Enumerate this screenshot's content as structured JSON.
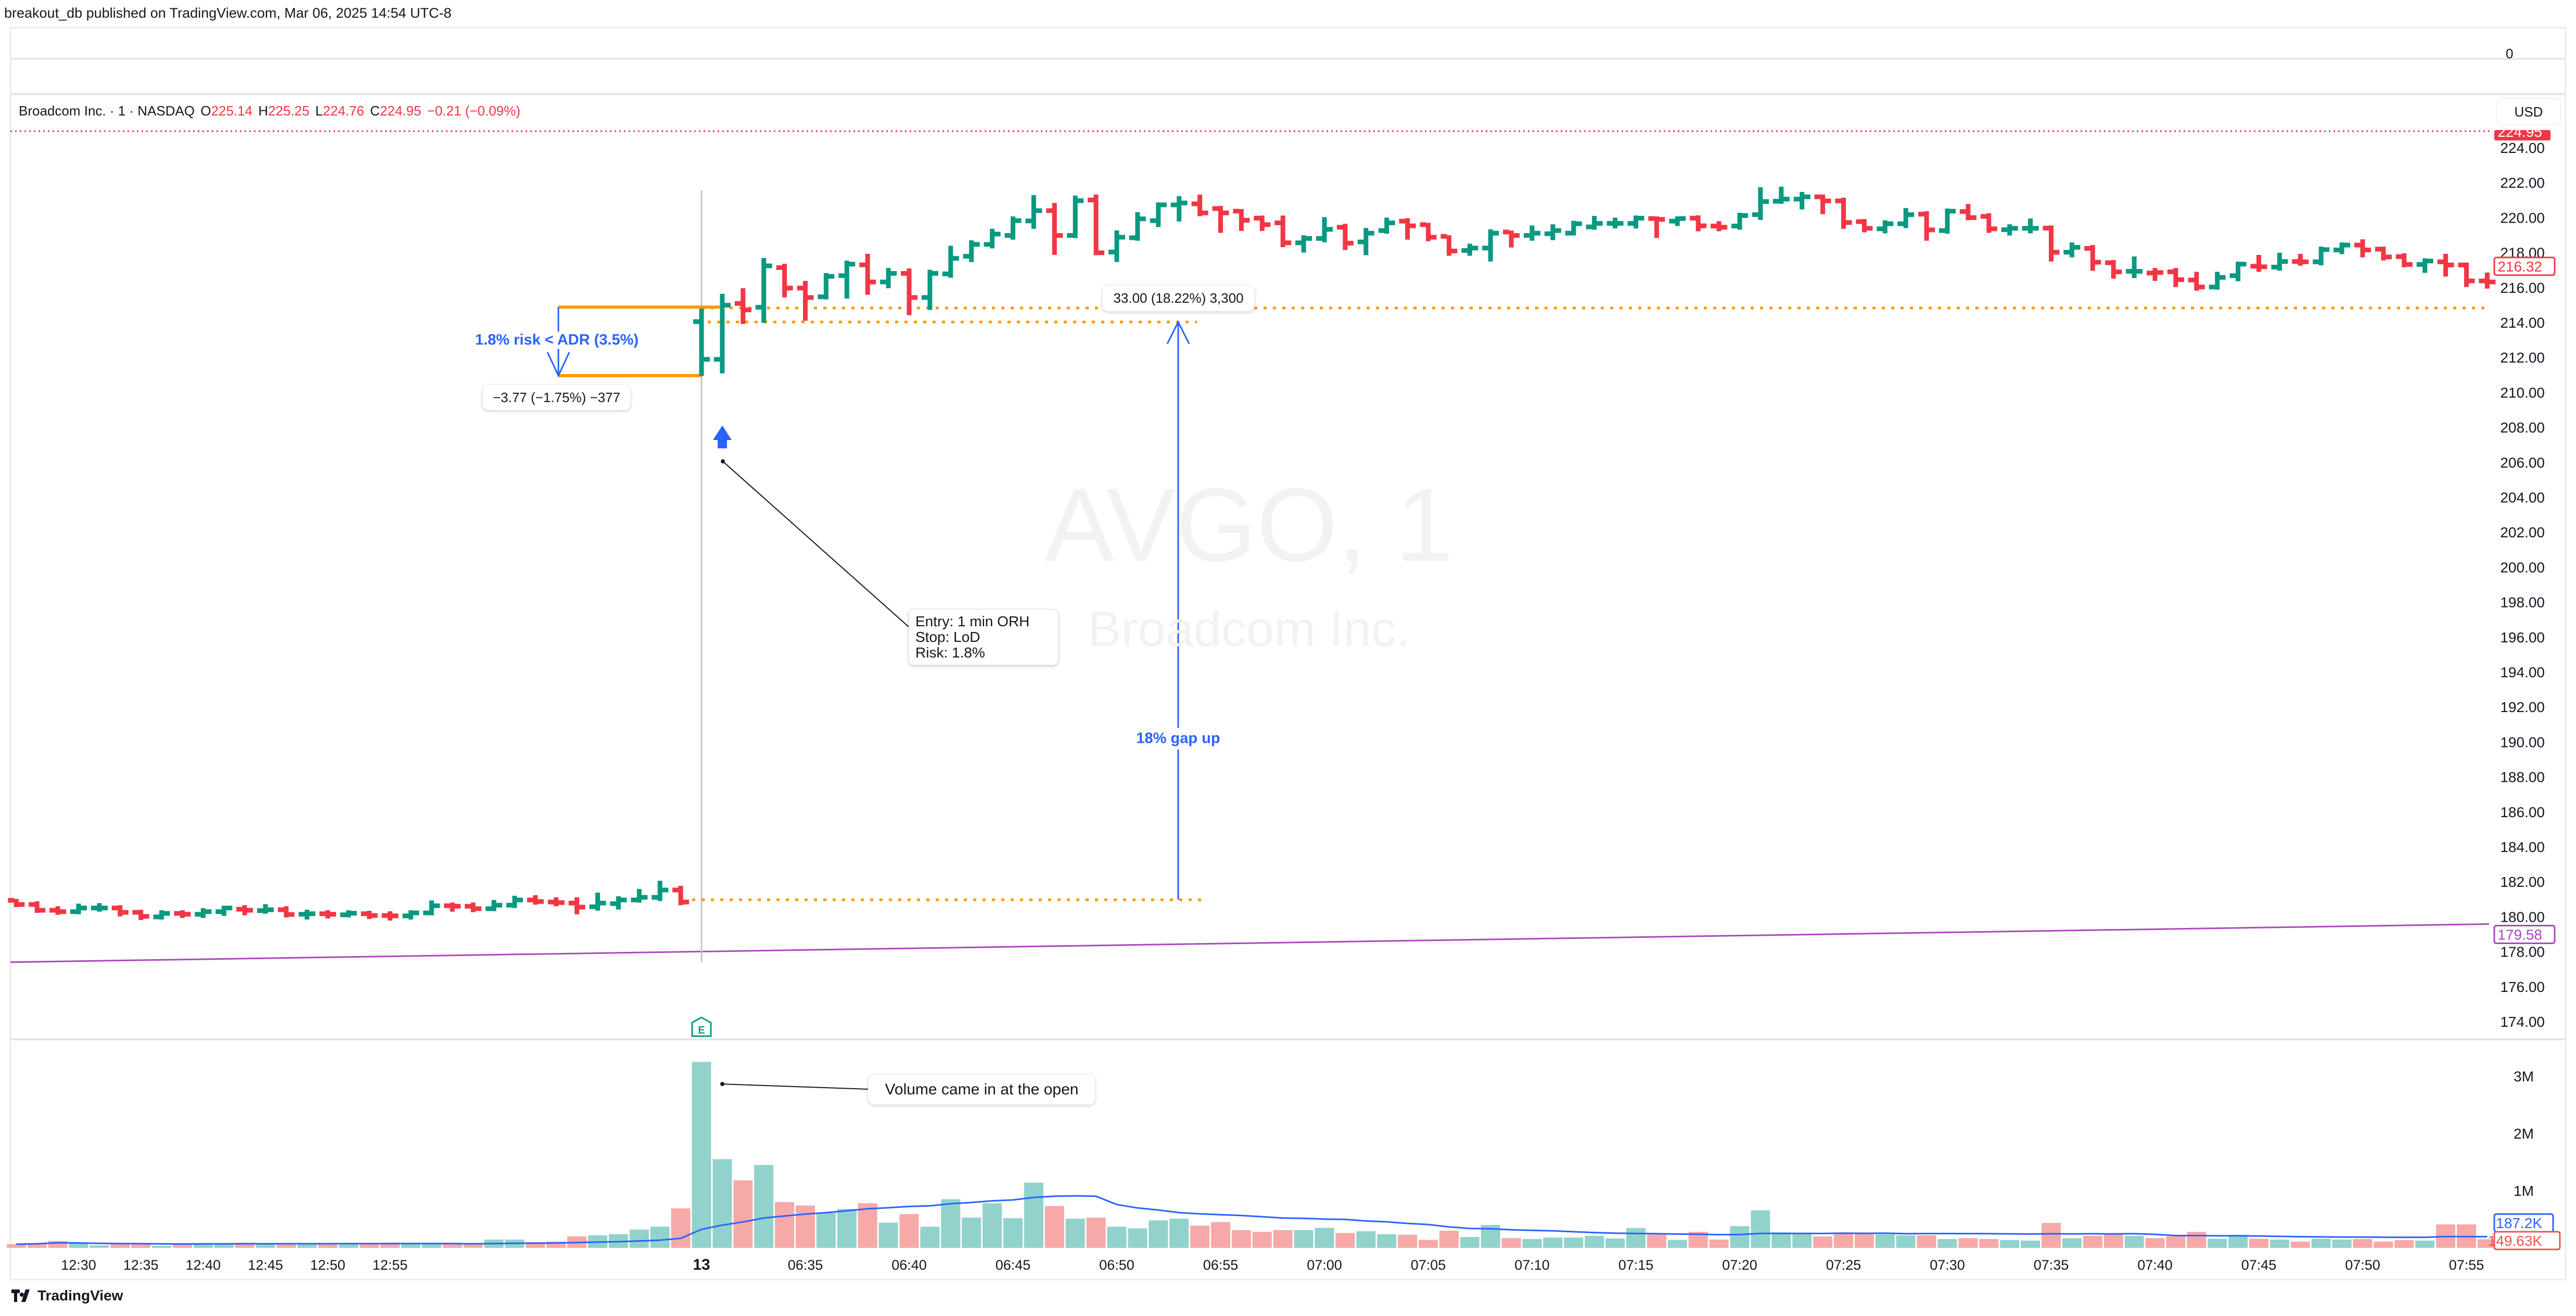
{
  "header": {
    "publish_line": "breakout_db published on TradingView.com, Mar 06, 2025 14:54 UTC-8"
  },
  "legend": {
    "symbol": "Broadcom Inc. · 1 · NASDAQ",
    "o_label": "O",
    "o": "225.14",
    "h_label": "H",
    "h": "225.25",
    "l_label": "L",
    "l": "224.76",
    "c_label": "C",
    "c": "224.95",
    "change": "−0.21 (−0.09%)"
  },
  "watermark": {
    "ticker": "AVGO, 1",
    "name": "Broadcom Inc."
  },
  "axis": {
    "currency": "USD",
    "top_pane_label": "0",
    "price_ticks": [
      "224.00",
      "222.00",
      "220.00",
      "218.00",
      "216.00",
      "214.00",
      "212.00",
      "210.00",
      "208.00",
      "206.00",
      "204.00",
      "202.00",
      "200.00",
      "198.00",
      "196.00",
      "194.00",
      "192.00",
      "190.00",
      "188.00",
      "186.00",
      "184.00",
      "182.00",
      "180.00",
      "178.00",
      "176.00",
      "174.00"
    ],
    "volume_ticks": [
      {
        "label": "3M",
        "value": 3000000
      },
      {
        "label": "2M",
        "value": 2000000
      },
      {
        "label": "1M",
        "value": 1000000
      }
    ],
    "last_price_label": "224.95",
    "current_price_label": "216.32",
    "ma_label": "179.58",
    "vol_ma_label": "187.2K",
    "vol_label": "149.63K"
  },
  "colors": {
    "up": "#089981",
    "down": "#f23645",
    "vol_up": "#92d2cc",
    "vol_down": "#f7a9a7",
    "ma": "#ab47bc",
    "vol_ma": "#2962ff",
    "annot_blue": "#2962ff",
    "orange": "#ff9800"
  },
  "annotations": {
    "risk_text": "1.8% risk < ADR (3.5%)",
    "risk_measure": "−3.77 (−1.75%) −377",
    "entry_note": [
      "Entry: 1 min ORH",
      "Stop: LoD",
      "Risk: 1.8%"
    ],
    "gap_text": "18% gap up",
    "gap_measure": "33.00 (18.22%) 3,300",
    "volume_note": "Volume came in at the open",
    "earnings_marker": "E"
  },
  "footer": {
    "brand": "TradingView"
  },
  "chart_data": {
    "type": "ohlc",
    "ylim": [
      173,
      225
    ],
    "volume_ma_length": 20,
    "ma_line": {
      "start": 177.4,
      "end": 179.58
    },
    "levels": {
      "open_high": 214.83,
      "open_low_tick": 214.03,
      "prior_close": 180.97,
      "stop": 210.96,
      "entry": 214.88
    },
    "x_ticks": [
      {
        "label": "12:30",
        "bar": 3
      },
      {
        "label": "12:35",
        "bar": 6
      },
      {
        "label": "12:40",
        "bar": 9
      },
      {
        "label": "12:45",
        "bar": 12
      },
      {
        "label": "12:50",
        "bar": 15
      },
      {
        "label": "12:55",
        "bar": 18
      },
      {
        "label": "13",
        "bar": 33,
        "bold": true
      },
      {
        "label": "06:35",
        "bar": 38
      },
      {
        "label": "06:40",
        "bar": 43
      },
      {
        "label": "06:45",
        "bar": 48
      },
      {
        "label": "06:50",
        "bar": 53
      },
      {
        "label": "06:55",
        "bar": 58
      },
      {
        "label": "07:00",
        "bar": 63
      },
      {
        "label": "07:05",
        "bar": 68
      },
      {
        "label": "07:10",
        "bar": 73
      },
      {
        "label": "07:15",
        "bar": 78
      },
      {
        "label": "07:20",
        "bar": 83
      },
      {
        "label": "07:25",
        "bar": 88
      },
      {
        "label": "07:30",
        "bar": 93
      },
      {
        "label": "07:35",
        "bar": 98
      },
      {
        "label": "07:40",
        "bar": 103
      },
      {
        "label": "07:45",
        "bar": 108
      },
      {
        "label": "07:50",
        "bar": 113
      },
      {
        "label": "07:55",
        "bar": 118
      }
    ],
    "bars_columns": [
      "open",
      "high",
      "low",
      "close",
      "volume",
      "direction"
    ],
    "bars": [
      [
        180.94,
        181.02,
        180.55,
        180.7,
        64000,
        "d"
      ],
      [
        180.7,
        180.88,
        180.22,
        180.37,
        80000,
        "d"
      ],
      [
        180.37,
        180.6,
        180.11,
        180.29,
        120000,
        "d"
      ],
      [
        180.29,
        180.75,
        180.14,
        180.5,
        80000,
        "u"
      ],
      [
        180.5,
        180.78,
        180.29,
        180.5,
        45000,
        "u"
      ],
      [
        180.5,
        180.66,
        180.02,
        180.25,
        64000,
        "d"
      ],
      [
        180.25,
        180.4,
        179.81,
        180.02,
        64000,
        "d"
      ],
      [
        179.99,
        180.37,
        179.84,
        180.19,
        36000,
        "u"
      ],
      [
        180.19,
        180.37,
        179.93,
        180.14,
        64000,
        "d"
      ],
      [
        180.14,
        180.49,
        179.93,
        180.29,
        80000,
        "u"
      ],
      [
        180.29,
        180.63,
        180.05,
        180.5,
        70000,
        "u"
      ],
      [
        180.43,
        180.66,
        180.08,
        180.37,
        90000,
        "d"
      ],
      [
        180.35,
        180.72,
        180.17,
        180.4,
        80000,
        "u"
      ],
      [
        180.4,
        180.6,
        179.96,
        180.13,
        80000,
        "d"
      ],
      [
        180.14,
        180.4,
        179.84,
        180.17,
        80000,
        "u"
      ],
      [
        180.17,
        180.37,
        179.9,
        180.14,
        70000,
        "d"
      ],
      [
        180.11,
        180.37,
        179.96,
        180.2,
        80000,
        "u"
      ],
      [
        180.17,
        180.34,
        179.87,
        180.07,
        80000,
        "d"
      ],
      [
        180.07,
        180.31,
        179.78,
        180.05,
        90000,
        "d"
      ],
      [
        180.05,
        180.37,
        179.84,
        180.22,
        80000,
        "u"
      ],
      [
        180.22,
        180.93,
        180.08,
        180.63,
        70000,
        "u"
      ],
      [
        180.63,
        180.81,
        180.29,
        180.6,
        70000,
        "d"
      ],
      [
        180.6,
        180.81,
        180.26,
        180.46,
        70000,
        "d"
      ],
      [
        180.46,
        180.96,
        180.32,
        180.66,
        145000,
        "u"
      ],
      [
        180.66,
        181.2,
        180.5,
        180.96,
        145000,
        "u"
      ],
      [
        180.96,
        181.23,
        180.69,
        180.87,
        100000,
        "d"
      ],
      [
        180.84,
        181.11,
        180.6,
        180.81,
        110000,
        "d"
      ],
      [
        180.78,
        181.11,
        180.14,
        180.55,
        200000,
        "d"
      ],
      [
        180.57,
        181.38,
        180.35,
        180.78,
        220000,
        "u"
      ],
      [
        180.75,
        181.17,
        180.41,
        180.96,
        240000,
        "u"
      ],
      [
        180.96,
        181.59,
        180.81,
        181.11,
        320000,
        "u"
      ],
      [
        181.11,
        182.06,
        180.9,
        181.53,
        370000,
        "u"
      ],
      [
        181.53,
        181.77,
        180.66,
        180.84,
        690000,
        "d"
      ],
      [
        214.05,
        214.79,
        210.94,
        211.89,
        3250000,
        "u"
      ],
      [
        211.89,
        215.64,
        211.09,
        214.99,
        1550000,
        "u"
      ],
      [
        215.09,
        215.96,
        213.92,
        214.72,
        1180000,
        "d"
      ],
      [
        214.87,
        217.69,
        213.98,
        217.24,
        1450000,
        "u"
      ],
      [
        217.14,
        217.36,
        215.44,
        215.97,
        800000,
        "d"
      ],
      [
        215.97,
        216.38,
        214.1,
        215.43,
        740000,
        "d"
      ],
      [
        215.47,
        216.83,
        215.32,
        216.64,
        610000,
        "u"
      ],
      [
        216.68,
        217.54,
        215.37,
        217.34,
        680000,
        "u"
      ],
      [
        217.3,
        217.93,
        215.59,
        216.32,
        780000,
        "d"
      ],
      [
        216.32,
        217.12,
        215.96,
        216.81,
        440000,
        "u"
      ],
      [
        216.81,
        217.09,
        214.42,
        215.43,
        590000,
        "d"
      ],
      [
        215.43,
        217.02,
        214.72,
        216.81,
        370000,
        "u"
      ],
      [
        216.78,
        218.39,
        216.56,
        217.67,
        850000,
        "u"
      ],
      [
        217.79,
        218.7,
        217.46,
        218.47,
        530000,
        "u"
      ],
      [
        218.47,
        219.36,
        218.24,
        219.06,
        780000,
        "u"
      ],
      [
        218.98,
        220.07,
        218.74,
        219.83,
        520000,
        "u"
      ],
      [
        219.81,
        221.29,
        219.36,
        220.4,
        1140000,
        "u"
      ],
      [
        220.4,
        220.84,
        217.87,
        218.98,
        730000,
        "d"
      ],
      [
        218.98,
        221.26,
        218.83,
        220.97,
        510000,
        "u"
      ],
      [
        221.01,
        221.32,
        217.85,
        217.99,
        530000,
        "d"
      ],
      [
        218.03,
        219.27,
        217.46,
        218.88,
        370000,
        "u"
      ],
      [
        218.85,
        220.31,
        218.68,
        219.93,
        340000,
        "u"
      ],
      [
        219.83,
        220.87,
        219.46,
        220.73,
        480000,
        "u"
      ],
      [
        220.73,
        221.23,
        219.78,
        220.84,
        510000,
        "u"
      ],
      [
        220.79,
        221.32,
        220.08,
        220.27,
        390000,
        "d"
      ],
      [
        220.52,
        220.67,
        219.13,
        220.27,
        450000,
        "d"
      ],
      [
        220.37,
        220.49,
        219.24,
        219.85,
        310000,
        "d"
      ],
      [
        219.97,
        220.12,
        219.24,
        219.6,
        280000,
        "d"
      ],
      [
        219.7,
        220.12,
        218.31,
        218.56,
        310000,
        "d"
      ],
      [
        218.56,
        218.99,
        218.0,
        218.81,
        310000,
        "u"
      ],
      [
        218.81,
        220.03,
        218.59,
        219.33,
        350000,
        "u"
      ],
      [
        219.45,
        219.65,
        218.15,
        218.54,
        260000,
        "d"
      ],
      [
        218.61,
        219.41,
        217.85,
        219.11,
        290000,
        "u"
      ],
      [
        219.26,
        220.0,
        219.08,
        219.7,
        240000,
        "u"
      ],
      [
        219.8,
        219.97,
        218.74,
        219.53,
        230000,
        "d"
      ],
      [
        219.6,
        219.7,
        218.65,
        218.88,
        140000,
        "d"
      ],
      [
        218.93,
        218.99,
        217.82,
        218.09,
        300000,
        "d"
      ],
      [
        218.12,
        218.51,
        217.82,
        218.26,
        190000,
        "u"
      ],
      [
        218.26,
        219.33,
        217.49,
        219.11,
        400000,
        "u"
      ],
      [
        219.18,
        219.26,
        218.29,
        218.98,
        170000,
        "d"
      ],
      [
        218.98,
        219.55,
        218.68,
        219.11,
        155000,
        "u"
      ],
      [
        219.08,
        219.62,
        218.71,
        219.26,
        180000,
        "u"
      ],
      [
        219.11,
        219.82,
        218.98,
        219.65,
        180000,
        "u"
      ],
      [
        219.47,
        220.1,
        219.31,
        219.67,
        210000,
        "u"
      ],
      [
        219.67,
        220.0,
        219.38,
        219.67,
        165000,
        "u"
      ],
      [
        219.67,
        220.12,
        219.38,
        219.97,
        345000,
        "u"
      ],
      [
        219.95,
        220.07,
        218.84,
        219.9,
        255000,
        "d"
      ],
      [
        219.8,
        220.07,
        219.52,
        219.95,
        140000,
        "u"
      ],
      [
        219.97,
        220.13,
        219.22,
        219.53,
        280000,
        "d"
      ],
      [
        219.52,
        219.8,
        219.22,
        219.45,
        145000,
        "d"
      ],
      [
        219.52,
        220.28,
        219.31,
        220.12,
        380000,
        "u"
      ],
      [
        220.17,
        221.74,
        219.87,
        220.92,
        655000,
        "u"
      ],
      [
        220.94,
        221.77,
        220.79,
        221.06,
        270000,
        "u"
      ],
      [
        221.06,
        221.47,
        220.47,
        221.19,
        255000,
        "u"
      ],
      [
        221.19,
        221.32,
        220.2,
        220.96,
        200000,
        "d"
      ],
      [
        220.96,
        221.14,
        219.36,
        219.72,
        255000,
        "d"
      ],
      [
        219.77,
        219.92,
        219.16,
        219.39,
        245000,
        "d"
      ],
      [
        219.36,
        219.85,
        219.1,
        219.65,
        236000,
        "u"
      ],
      [
        219.65,
        220.55,
        219.4,
        220.17,
        220000,
        "u"
      ],
      [
        220.2,
        220.37,
        218.68,
        219.3,
        220000,
        "d"
      ],
      [
        219.26,
        220.52,
        219.08,
        220.37,
        155000,
        "u"
      ],
      [
        220.35,
        220.78,
        219.85,
        220.0,
        170000,
        "d"
      ],
      [
        220.07,
        220.25,
        219.13,
        219.36,
        155000,
        "d"
      ],
      [
        219.31,
        219.62,
        218.98,
        219.39,
        136000,
        "u"
      ],
      [
        219.39,
        219.95,
        219.1,
        219.39,
        127000,
        "u"
      ],
      [
        219.4,
        219.55,
        217.49,
        218.02,
        436000,
        "d"
      ],
      [
        218.02,
        218.58,
        217.73,
        218.3,
        170000,
        "u"
      ],
      [
        218.24,
        218.43,
        216.96,
        217.45,
        210000,
        "d"
      ],
      [
        217.42,
        217.57,
        216.51,
        216.9,
        236000,
        "d"
      ],
      [
        216.93,
        217.78,
        216.54,
        216.93,
        210000,
        "u"
      ],
      [
        216.83,
        217.12,
        216.38,
        216.86,
        170000,
        "d"
      ],
      [
        216.9,
        217.12,
        216.03,
        216.45,
        200000,
        "d"
      ],
      [
        216.43,
        216.9,
        215.82,
        216.03,
        280000,
        "d"
      ],
      [
        216.03,
        216.9,
        215.88,
        216.58,
        160000,
        "u"
      ],
      [
        216.68,
        217.48,
        216.36,
        217.34,
        227000,
        "u"
      ],
      [
        217.22,
        217.87,
        216.9,
        217.19,
        160000,
        "d"
      ],
      [
        217.17,
        217.99,
        216.96,
        217.49,
        145000,
        "u"
      ],
      [
        217.49,
        217.93,
        217.25,
        217.47,
        110000,
        "d"
      ],
      [
        217.47,
        218.34,
        217.27,
        218.17,
        160000,
        "u"
      ],
      [
        218.15,
        218.58,
        217.91,
        218.43,
        145000,
        "u"
      ],
      [
        218.43,
        218.76,
        217.73,
        218.15,
        155000,
        "d"
      ],
      [
        218.2,
        218.34,
        217.55,
        217.75,
        110000,
        "d"
      ],
      [
        217.77,
        217.96,
        217.16,
        217.32,
        136000,
        "d"
      ],
      [
        217.32,
        217.67,
        216.84,
        217.52,
        127000,
        "u"
      ],
      [
        217.47,
        217.93,
        216.63,
        217.29,
        410000,
        "d"
      ],
      [
        217.29,
        217.43,
        216.03,
        216.38,
        410000,
        "d"
      ],
      [
        216.38,
        216.86,
        215.94,
        216.32,
        149630,
        "d"
      ]
    ]
  }
}
